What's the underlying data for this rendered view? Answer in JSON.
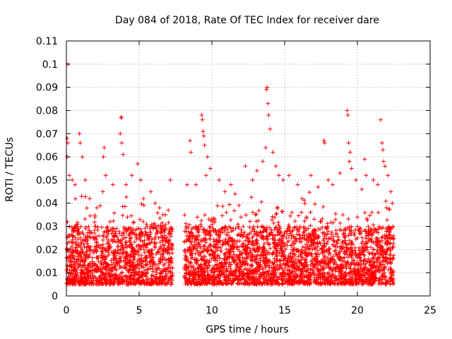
{
  "chart_data": {
    "type": "scatter",
    "title": "Day 084 of 2018, Rate Of TEC Index for receiver dare",
    "xlabel": "GPS time / hours",
    "ylabel": "ROTI / TECUs",
    "xlim": [
      0,
      25
    ],
    "ylim": [
      0,
      0.11
    ],
    "xticks": [
      "0",
      "5",
      "10",
      "15",
      "20",
      "25"
    ],
    "yticks": [
      "0",
      "0.01",
      "0.02",
      "0.03",
      "0.04",
      "0.05",
      "0.06",
      "0.07",
      "0.08",
      "0.09",
      "0.1",
      "0.11"
    ],
    "grid": true,
    "marker": "plus",
    "color": "#ff0000",
    "data_gaps_hours": [
      [
        7.3,
        8.1
      ],
      [
        22.5,
        25
      ]
    ],
    "series": [
      {
        "points": [
          [
            0.1,
            0.1
          ],
          [
            0.05,
            0.068
          ],
          [
            0.1,
            0.066
          ],
          [
            0.05,
            0.06
          ],
          [
            0.2,
            0.052
          ],
          [
            0.9,
            0.07
          ],
          [
            0.95,
            0.066
          ],
          [
            1.1,
            0.06
          ],
          [
            0.4,
            0.05
          ],
          [
            0.6,
            0.048
          ],
          [
            1.3,
            0.05
          ],
          [
            1.6,
            0.042
          ],
          [
            2.1,
            0.038
          ],
          [
            2.5,
            0.045
          ],
          [
            2.7,
            0.052
          ],
          [
            3.2,
            0.048
          ],
          [
            2.6,
            0.064
          ],
          [
            2.55,
            0.06
          ],
          [
            3.75,
            0.077
          ],
          [
            3.8,
            0.077
          ],
          [
            3.7,
            0.07
          ],
          [
            3.8,
            0.066
          ],
          [
            3.9,
            0.061
          ],
          [
            4.1,
            0.048
          ],
          [
            4.5,
            0.052
          ],
          [
            4.9,
            0.057
          ],
          [
            5.1,
            0.05
          ],
          [
            5.3,
            0.042
          ],
          [
            5.8,
            0.045
          ],
          [
            6.1,
            0.04
          ],
          [
            6.4,
            0.038
          ],
          [
            6.8,
            0.035
          ],
          [
            7.15,
            0.05
          ],
          [
            7.0,
            0.037
          ],
          [
            8.5,
            0.067
          ],
          [
            8.55,
            0.062
          ],
          [
            8.3,
            0.048
          ],
          [
            8.9,
            0.048
          ],
          [
            9.3,
            0.078
          ],
          [
            9.35,
            0.076
          ],
          [
            9.4,
            0.071
          ],
          [
            9.45,
            0.069
          ],
          [
            9.5,
            0.065
          ],
          [
            9.7,
            0.06
          ],
          [
            9.9,
            0.055
          ],
          [
            9.6,
            0.052
          ],
          [
            10.5,
            0.05
          ],
          [
            10.9,
            0.045
          ],
          [
            11.3,
            0.048
          ],
          [
            11.6,
            0.044
          ],
          [
            12.3,
            0.056
          ],
          [
            12.8,
            0.05
          ],
          [
            13.1,
            0.054
          ],
          [
            13.5,
            0.058
          ],
          [
            13.7,
            0.064
          ],
          [
            13.75,
            0.089
          ],
          [
            13.8,
            0.09
          ],
          [
            13.85,
            0.083
          ],
          [
            13.9,
            0.078
          ],
          [
            14.0,
            0.072
          ],
          [
            14.2,
            0.062
          ],
          [
            14.4,
            0.056
          ],
          [
            14.6,
            0.052
          ],
          [
            14.9,
            0.05
          ],
          [
            15.3,
            0.052
          ],
          [
            15.9,
            0.048
          ],
          [
            16.2,
            0.042
          ],
          [
            16.8,
            0.052
          ],
          [
            17.3,
            0.047
          ],
          [
            17.7,
            0.067
          ],
          [
            17.75,
            0.066
          ],
          [
            18.0,
            0.05
          ],
          [
            18.3,
            0.048
          ],
          [
            18.8,
            0.053
          ],
          [
            19.3,
            0.08
          ],
          [
            19.35,
            0.078
          ],
          [
            19.4,
            0.066
          ],
          [
            19.5,
            0.062
          ],
          [
            19.45,
            0.058
          ],
          [
            19.6,
            0.055
          ],
          [
            19.9,
            0.05
          ],
          [
            20.3,
            0.046
          ],
          [
            20.5,
            0.059
          ],
          [
            20.6,
            0.052
          ],
          [
            21.1,
            0.05
          ],
          [
            21.4,
            0.048
          ],
          [
            21.6,
            0.076
          ],
          [
            21.7,
            0.066
          ],
          [
            21.75,
            0.063
          ],
          [
            21.8,
            0.058
          ],
          [
            21.9,
            0.056
          ],
          [
            22.1,
            0.052
          ],
          [
            22.3,
            0.045
          ],
          [
            22.4,
            0.04
          ],
          [
            2.0,
            0.03
          ],
          [
            3.0,
            0.032
          ],
          [
            4.2,
            0.034
          ],
          [
            5.5,
            0.031
          ],
          [
            6.6,
            0.03
          ],
          [
            9.0,
            0.034
          ],
          [
            10.2,
            0.033
          ],
          [
            11.0,
            0.036
          ],
          [
            12.0,
            0.034
          ],
          [
            13.0,
            0.035
          ],
          [
            14.5,
            0.038
          ],
          [
            15.5,
            0.036
          ],
          [
            16.5,
            0.034
          ],
          [
            17.5,
            0.032
          ],
          [
            18.5,
            0.033
          ],
          [
            19.0,
            0.035
          ],
          [
            20.0,
            0.034
          ],
          [
            21.0,
            0.036
          ],
          [
            22.0,
            0.038
          ]
        ]
      }
    ]
  }
}
